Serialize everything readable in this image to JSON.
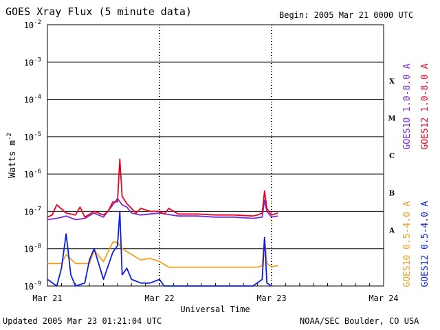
{
  "header": {
    "title": "GOES Xray Flux (5 minute data)",
    "begin": "Begin:  2005 Mar 21 0000 UTC"
  },
  "footer": {
    "updated": "Updated 2005 Mar 23 01:21:04 UTC",
    "credit": "NOAA/SEC Boulder, CO USA"
  },
  "colors": {
    "goes10_long": "#7a2ad6",
    "goes12_long": "#e8001c",
    "goes10_short": "#f0a020",
    "goes12_short": "#0b1ee0"
  },
  "chart_data": {
    "type": "line",
    "xlabel": "Universal Time",
    "ylabel": "Watts m",
    "ylabel_superscript": "-2",
    "y_scale": "log",
    "ylim": [
      1e-09,
      0.01
    ],
    "xlim_days": [
      "2005-03-21",
      "2005-03-24"
    ],
    "x_ticks": [
      "Mar 21",
      "Mar 22",
      "Mar 23",
      "Mar 24"
    ],
    "y_ticks": [
      {
        "base": "10",
        "exp": "-2"
      },
      {
        "base": "10",
        "exp": "-3"
      },
      {
        "base": "10",
        "exp": "-4"
      },
      {
        "base": "10",
        "exp": "-5"
      },
      {
        "base": "10",
        "exp": "-6"
      },
      {
        "base": "10",
        "exp": "-7"
      },
      {
        "base": "10",
        "exp": "-8"
      },
      {
        "base": "10",
        "exp": "-9"
      }
    ],
    "flare_classes": [
      {
        "label": "X",
        "value": 0.0001
      },
      {
        "label": "M",
        "value": 1e-05
      },
      {
        "label": "C",
        "value": 1e-06
      },
      {
        "label": "B",
        "value": 1e-07
      },
      {
        "label": "A",
        "value": 1e-08
      }
    ],
    "legend": [
      {
        "label": "GOES12 0.5-4.0 A",
        "series": "goes12_short"
      },
      {
        "label": "GOES10 0.5-4.0 A",
        "series": "goes10_short"
      },
      {
        "label": "GOES12 1.0-8.0 A",
        "series": "goes12_long"
      },
      {
        "label": "GOES10 1.0-8.0 A",
        "series": "goes10_long"
      }
    ],
    "grid": true,
    "series": [
      {
        "name": "GOES10 1.0-8.0 A",
        "key": "goes10_long",
        "x": [
          "2005-03-21 00:00",
          "2005-03-21 02:00",
          "2005-03-21 04:00",
          "2005-03-21 06:00",
          "2005-03-21 08:00",
          "2005-03-21 10:00",
          "2005-03-21 12:00",
          "2005-03-21 14:00",
          "2005-03-21 15:00",
          "2005-03-21 16:00",
          "2005-03-21 17:00",
          "2005-03-21 18:00",
          "2005-03-21 20:00",
          "2005-03-21 22:00",
          "2005-03-22 00:00",
          "2005-03-22 04:00",
          "2005-03-22 08:00",
          "2005-03-22 12:00",
          "2005-03-22 16:00",
          "2005-03-22 20:00",
          "2005-03-22 22:00",
          "2005-03-22 22:30",
          "2005-03-22 23:00",
          "2005-03-23 00:00",
          "2005-03-23 01:20"
        ],
        "y": [
          6e-08,
          6.5e-08,
          7.5e-08,
          6e-08,
          6.5e-08,
          9e-08,
          7e-08,
          1.5e-07,
          2.2e-07,
          1.5e-07,
          1.3e-07,
          9e-08,
          8e-08,
          8.5e-08,
          9e-08,
          7.5e-08,
          7.5e-08,
          7e-08,
          7e-08,
          6.5e-08,
          7e-08,
          2e-07,
          1e-07,
          7e-08,
          7.5e-08
        ]
      },
      {
        "name": "GOES12 1.0-8.0 A",
        "key": "goes12_long",
        "x": [
          "2005-03-21 00:00",
          "2005-03-21 01:00",
          "2005-03-21 02:00",
          "2005-03-21 04:00",
          "2005-03-21 06:00",
          "2005-03-21 07:00",
          "2005-03-21 08:00",
          "2005-03-21 10:00",
          "2005-03-21 12:00",
          "2005-03-21 13:00",
          "2005-03-21 14:00",
          "2005-03-21 15:00",
          "2005-03-21 15:30",
          "2005-03-21 16:00",
          "2005-03-21 17:00",
          "2005-03-21 18:00",
          "2005-03-21 19:00",
          "2005-03-21 20:00",
          "2005-03-21 22:00",
          "2005-03-22 00:00",
          "2005-03-22 01:00",
          "2005-03-22 02:00",
          "2005-03-22 04:00",
          "2005-03-22 08:00",
          "2005-03-22 12:00",
          "2005-03-22 16:00",
          "2005-03-22 20:00",
          "2005-03-22 21:00",
          "2005-03-22 22:00",
          "2005-03-22 22:30",
          "2005-03-22 23:00",
          "2005-03-23 00:00",
          "2005-03-23 01:20"
        ],
        "y": [
          7e-08,
          8e-08,
          1.5e-07,
          9e-08,
          8e-08,
          1.3e-07,
          7e-08,
          1e-07,
          8e-08,
          1e-07,
          1.8e-07,
          1.8e-07,
          2.5e-06,
          2.5e-07,
          1.6e-07,
          1.2e-07,
          9e-08,
          1.2e-07,
          1e-07,
          1e-07,
          8.5e-08,
          1.2e-07,
          8.5e-08,
          8.5e-08,
          8e-08,
          8e-08,
          7.5e-08,
          8e-08,
          9e-08,
          3.5e-07,
          1.2e-07,
          8e-08,
          9e-08
        ]
      },
      {
        "name": "GOES10 0.5-4.0 A",
        "key": "goes10_short",
        "x": [
          "2005-03-21 00:00",
          "2005-03-21 03:00",
          "2005-03-21 04:00",
          "2005-03-21 06:00",
          "2005-03-21 09:00",
          "2005-03-21 10:00",
          "2005-03-21 12:00",
          "2005-03-21 14:00",
          "2005-03-21 15:00",
          "2005-03-21 16:00",
          "2005-03-21 18:00",
          "2005-03-21 20:00",
          "2005-03-21 22:00",
          "2005-03-22 00:00",
          "2005-03-22 02:00",
          "2005-03-22 06:00",
          "2005-03-22 10:00",
          "2005-03-22 14:00",
          "2005-03-22 18:00",
          "2005-03-22 21:00",
          "2005-03-22 22:00",
          "2005-03-22 22:30",
          "2005-03-22 23:00",
          "2005-03-23 00:00",
          "2005-03-23 01:20"
        ],
        "y": [
          4e-09,
          4e-09,
          7e-09,
          4e-09,
          4e-09,
          9e-09,
          4.5e-09,
          1.5e-08,
          1.5e-08,
          1e-08,
          7e-09,
          5e-09,
          5.5e-09,
          4.5e-09,
          3.2e-09,
          3.2e-09,
          3.2e-09,
          3.2e-09,
          3.2e-09,
          3.2e-09,
          3.5e-09,
          2e-08,
          4e-09,
          3.3e-09,
          3.5e-09
        ]
      },
      {
        "name": "GOES12 0.5-4.0 A",
        "key": "goes12_short",
        "x": [
          "2005-03-21 00:00",
          "2005-03-21 02:00",
          "2005-03-21 03:00",
          "2005-03-21 04:00",
          "2005-03-21 05:00",
          "2005-03-21 06:00",
          "2005-03-21 08:00",
          "2005-03-21 09:00",
          "2005-03-21 10:00",
          "2005-03-21 12:00",
          "2005-03-21 14:00",
          "2005-03-21 15:00",
          "2005-03-21 15:30",
          "2005-03-21 16:00",
          "2005-03-21 17:00",
          "2005-03-21 18:00",
          "2005-03-21 20:00",
          "2005-03-21 22:00",
          "2005-03-22 00:00",
          "2005-03-22 01:00",
          "2005-03-22 12:00",
          "2005-03-22 20:00",
          "2005-03-22 22:00",
          "2005-03-22 22:30",
          "2005-03-22 23:00",
          "2005-03-23 00:00"
        ],
        "y": [
          1.5e-09,
          1e-09,
          3e-09,
          2.5e-08,
          2e-09,
          1e-09,
          1.2e-09,
          5e-09,
          1e-08,
          1.5e-09,
          8e-09,
          1.2e-08,
          1e-07,
          2e-09,
          3e-09,
          1.5e-09,
          1.2e-09,
          1.2e-09,
          1.5e-09,
          1e-09,
          1e-09,
          1e-09,
          1.5e-09,
          2e-08,
          1.2e-09,
          1e-09
        ]
      }
    ]
  }
}
